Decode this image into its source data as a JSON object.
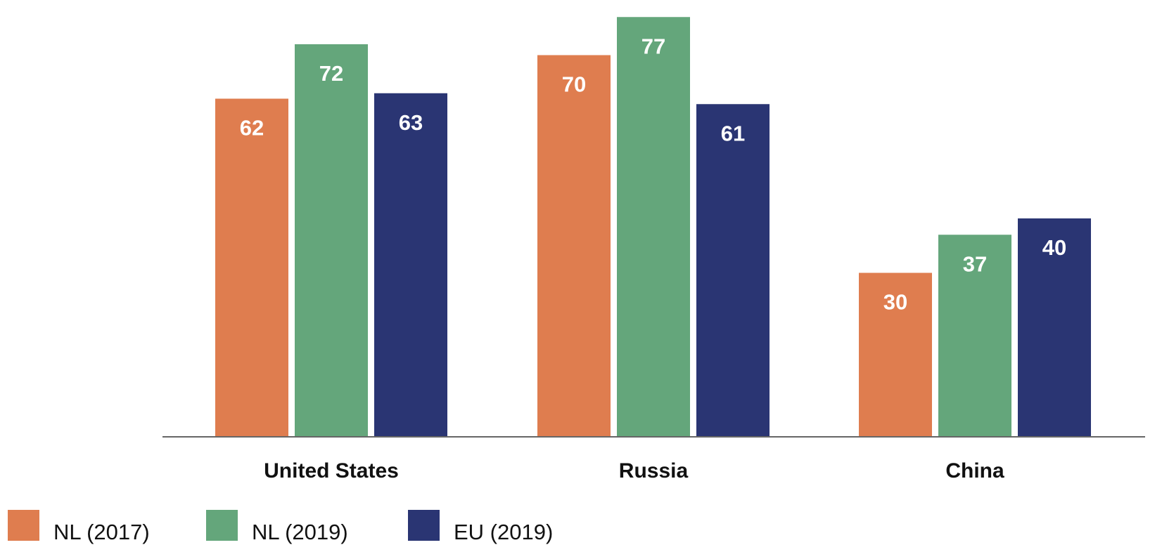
{
  "chart_data": {
    "type": "bar",
    "title": "",
    "xlabel": "",
    "ylabel": "",
    "ylim": [
      0,
      80
    ],
    "grid": false,
    "legend_position": "bottom-left",
    "categories": [
      "United States",
      "Russia",
      "China"
    ],
    "series": [
      {
        "name": "NL (2017)",
        "color": "#df7d4f",
        "values": [
          62,
          70,
          30
        ]
      },
      {
        "name": "NL (2019)",
        "color": "#64a67b",
        "values": [
          72,
          77,
          37
        ]
      },
      {
        "name": "EU (2019)",
        "color": "#2a3573",
        "values": [
          63,
          61,
          40
        ]
      }
    ]
  }
}
